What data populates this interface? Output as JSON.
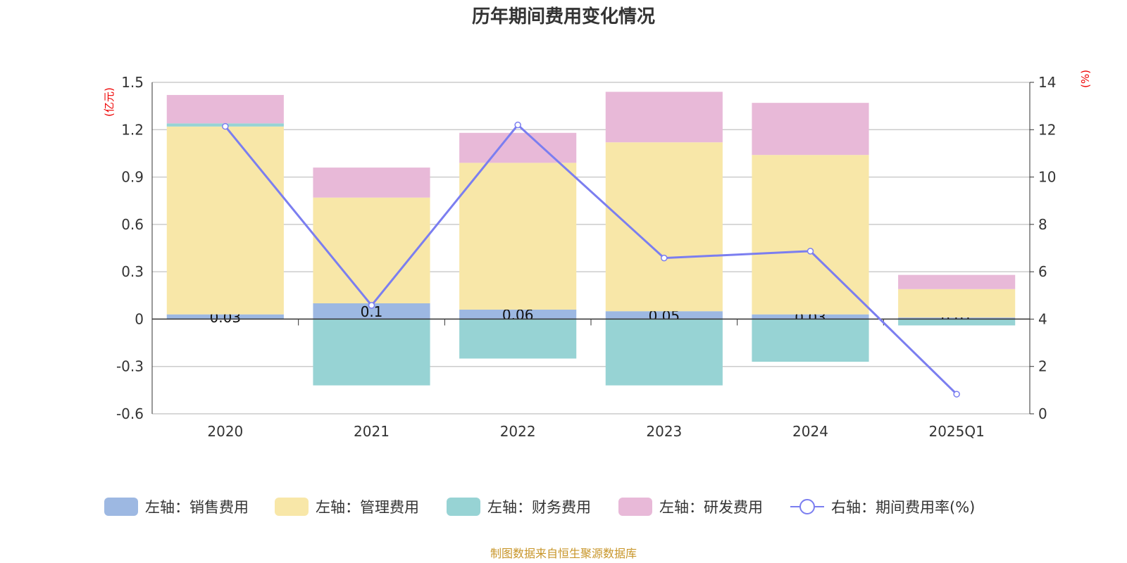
{
  "chart_data": {
    "type": "bar",
    "title": "历年期间费用变化情况",
    "categories": [
      "2020",
      "2021",
      "2022",
      "2023",
      "2024",
      "2025Q1"
    ],
    "left_axis": {
      "unit": "(亿元)",
      "range": [
        -0.6,
        1.5
      ],
      "ticks": [
        "-0.6",
        "-0.3",
        "0",
        "0.3",
        "0.6",
        "0.9",
        "1.2",
        "1.5"
      ]
    },
    "right_axis": {
      "unit": "(%)",
      "range": [
        0,
        14
      ],
      "ticks": [
        "0",
        "2",
        "4",
        "6",
        "8",
        "10",
        "12",
        "14"
      ]
    },
    "grid": true,
    "legend_placement": "bottom",
    "series": [
      {
        "name": "左轴：销售费用",
        "type": "bar",
        "color": "#9db8e2",
        "values": [
          0.03,
          0.1,
          0.06,
          0.05,
          0.03,
          0.01
        ],
        "labels": [
          "0.03",
          "0.1",
          "0.06",
          "0.05",
          "0.03",
          "0.01"
        ]
      },
      {
        "name": "左轴：管理费用",
        "type": "bar",
        "color": "#f8e7a8",
        "values": [
          1.19,
          0.67,
          0.93,
          1.07,
          1.01,
          0.18
        ]
      },
      {
        "name": "左轴：财务费用",
        "type": "bar",
        "color": "#97d3d4",
        "values": [
          0.02,
          -0.42,
          -0.25,
          -0.42,
          -0.27,
          -0.04
        ]
      },
      {
        "name": "左轴：研发费用",
        "type": "bar",
        "color": "#e8b9d8",
        "values": [
          0.18,
          0.19,
          0.19,
          0.32,
          0.33,
          0.09
        ]
      },
      {
        "name": "右轴：期间费用率(%)",
        "type": "line",
        "axis": "right",
        "color": "#7b7ef0",
        "values": [
          12.14,
          4.58,
          12.2,
          6.58,
          6.87,
          0.83
        ]
      }
    ]
  },
  "footer": {
    "source": "制图数据来自恒生聚源数据库"
  }
}
